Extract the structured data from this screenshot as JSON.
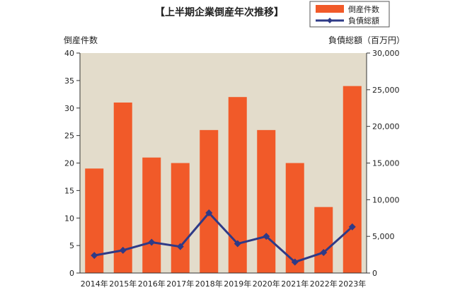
{
  "chart_data": {
    "type": "bar+line",
    "title": "【上半期企業倒産年次推移】",
    "categories": [
      "2014年",
      "2015年",
      "2016年",
      "2017年",
      "2018年",
      "2019年",
      "2020年",
      "2021年",
      "2022年",
      "2023年"
    ],
    "series": [
      {
        "name": "倒産件数",
        "type": "bar",
        "axis": "left",
        "color": "#f15a29",
        "values": [
          19,
          31,
          21,
          20,
          26,
          32,
          26,
          20,
          12,
          34
        ]
      },
      {
        "name": "負債総額",
        "type": "line",
        "axis": "right",
        "color": "#2e3a87",
        "values": [
          2400,
          3100,
          4200,
          3600,
          8200,
          4000,
          5000,
          1500,
          2800,
          6300
        ]
      }
    ],
    "ylabel_left": "倒産件数",
    "ylabel_right": "負債総額（百万円）",
    "ylim_left": [
      0,
      40
    ],
    "ylim_right": [
      0,
      30000
    ],
    "yticks_left": [
      "0",
      "5",
      "10",
      "15",
      "20",
      "25",
      "30",
      "35",
      "40"
    ],
    "yticks_right": [
      "0",
      "5,000",
      "10,000",
      "15,000",
      "20,000",
      "25,000",
      "30,000"
    ],
    "legend_position": "top-right",
    "plot_background": "#e3dccb",
    "grid": false
  }
}
